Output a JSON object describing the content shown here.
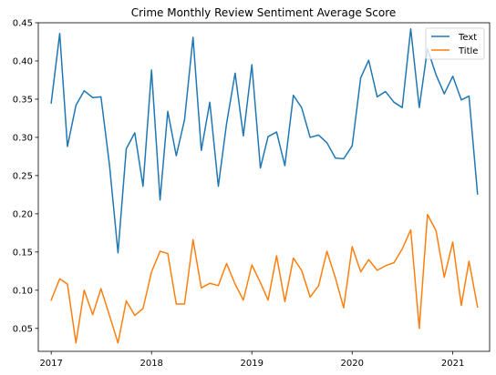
{
  "chart_data": {
    "type": "line",
    "title": "Crime Monthly Review Sentiment Average Score",
    "xlabel": "",
    "ylabel": "",
    "x_type": "date",
    "xlim": [
      "2016-11-15",
      "2021-05-15"
    ],
    "ylim": [
      0.02,
      0.45
    ],
    "x_ticks": [
      {
        "value": "2017-01-01",
        "label": "2017"
      },
      {
        "value": "2018-01-01",
        "label": "2018"
      },
      {
        "value": "2019-01-01",
        "label": "2019"
      },
      {
        "value": "2020-01-01",
        "label": "2020"
      },
      {
        "value": "2021-01-01",
        "label": "2021"
      }
    ],
    "y_ticks": [
      {
        "value": 0.05,
        "label": "0.05"
      },
      {
        "value": 0.1,
        "label": "0.10"
      },
      {
        "value": 0.15,
        "label": "0.15"
      },
      {
        "value": 0.2,
        "label": "0.20"
      },
      {
        "value": 0.25,
        "label": "0.25"
      },
      {
        "value": 0.3,
        "label": "0.30"
      },
      {
        "value": 0.35,
        "label": "0.35"
      },
      {
        "value": 0.4,
        "label": "0.40"
      },
      {
        "value": 0.45,
        "label": "0.45"
      }
    ],
    "grid": false,
    "legend_position": "top-right",
    "x": [
      "2017-01-01",
      "2017-02-01",
      "2017-03-01",
      "2017-04-01",
      "2017-05-01",
      "2017-06-01",
      "2017-07-01",
      "2017-08-01",
      "2017-09-01",
      "2017-10-01",
      "2017-11-01",
      "2017-12-01",
      "2018-01-01",
      "2018-02-01",
      "2018-03-01",
      "2018-04-01",
      "2018-05-01",
      "2018-06-01",
      "2018-07-01",
      "2018-08-01",
      "2018-09-01",
      "2018-10-01",
      "2018-11-01",
      "2018-12-01",
      "2019-01-01",
      "2019-02-01",
      "2019-03-01",
      "2019-04-01",
      "2019-05-01",
      "2019-06-01",
      "2019-07-01",
      "2019-08-01",
      "2019-09-01",
      "2019-10-01",
      "2019-11-01",
      "2019-12-01",
      "2020-01-01",
      "2020-02-01",
      "2020-03-01",
      "2020-04-01",
      "2020-05-01",
      "2020-06-01",
      "2020-07-01",
      "2020-08-01",
      "2020-09-01",
      "2020-10-01",
      "2020-11-01",
      "2020-12-01",
      "2021-01-01",
      "2021-02-01",
      "2021-03-01",
      "2021-04-01"
    ],
    "series": [
      {
        "name": "Text",
        "color": "#1f77b4",
        "values": [
          0.345,
          0.436,
          0.288,
          0.342,
          0.361,
          0.352,
          0.353,
          0.264,
          0.149,
          0.285,
          0.306,
          0.236,
          0.388,
          0.218,
          0.334,
          0.276,
          0.323,
          0.431,
          0.283,
          0.346,
          0.236,
          0.318,
          0.384,
          0.302,
          0.395,
          0.26,
          0.301,
          0.307,
          0.263,
          0.355,
          0.339,
          0.3,
          0.303,
          0.293,
          0.273,
          0.272,
          0.289,
          0.378,
          0.401,
          0.353,
          0.36,
          0.346,
          0.339,
          0.442,
          0.339,
          0.416,
          0.382,
          0.357,
          0.38,
          0.349,
          0.354,
          0.226
        ]
      },
      {
        "name": "Title",
        "color": "#ff7f0e",
        "values": [
          0.087,
          0.115,
          0.108,
          0.031,
          0.1,
          0.068,
          0.102,
          0.067,
          0.031,
          0.086,
          0.067,
          0.076,
          0.124,
          0.151,
          0.148,
          0.082,
          0.082,
          0.166,
          0.103,
          0.109,
          0.106,
          0.135,
          0.108,
          0.087,
          0.133,
          0.11,
          0.087,
          0.145,
          0.085,
          0.142,
          0.126,
          0.091,
          0.106,
          0.151,
          0.116,
          0.077,
          0.157,
          0.124,
          0.14,
          0.126,
          0.132,
          0.136,
          0.154,
          0.179,
          0.05,
          0.199,
          0.178,
          0.117,
          0.163,
          0.08,
          0.138,
          0.078
        ]
      }
    ]
  }
}
